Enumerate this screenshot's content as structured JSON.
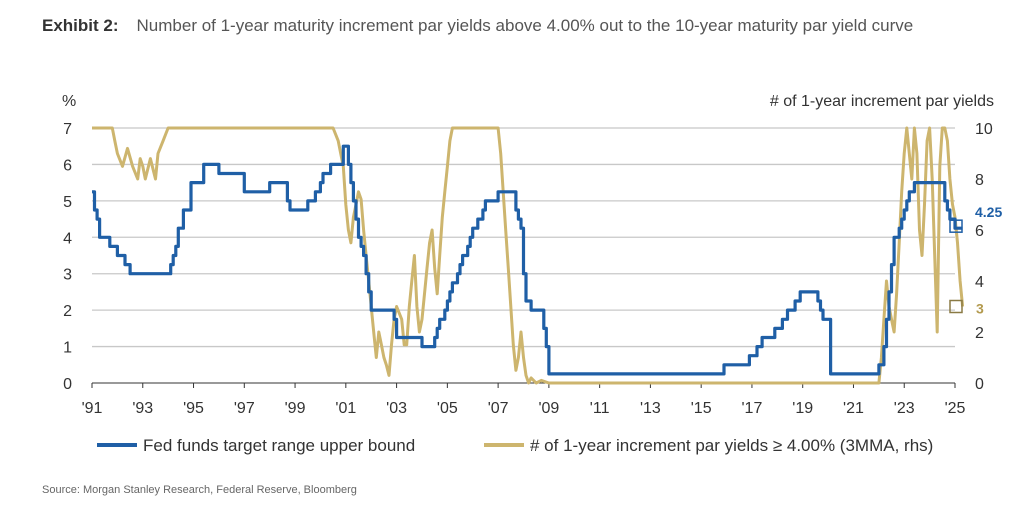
{
  "header": {
    "exhibit_label": "Exhibit 2:",
    "title_text": "Number of 1-year maturity increment par yields above 4.00% out to the 10-year maturity par yield curve"
  },
  "source": "Source: Morgan Stanley Research, Federal Reserve, Bloomberg",
  "chart_data": {
    "type": "line",
    "left_axis_label": "%",
    "right_axis_label": "# of 1-year increment par yields",
    "left_ylim": [
      0,
      7
    ],
    "right_ylim": [
      0,
      10
    ],
    "left_ticks": [
      "0",
      "1",
      "2",
      "3",
      "4",
      "5",
      "6",
      "7"
    ],
    "right_ticks": [
      "0",
      "2",
      "4",
      "6",
      "8",
      "10"
    ],
    "xlim": [
      1991,
      2025
    ],
    "x_ticks": [
      "'91",
      "'93",
      "'95",
      "'97",
      "'99",
      "'01",
      "'03",
      "'05",
      "'07",
      "'09",
      "'11",
      "'13",
      "'15",
      "'17",
      "'19",
      "'21",
      "'23",
      "'25"
    ],
    "colors": {
      "fed": "#1f5fa6",
      "count": "#cdb56e",
      "grid": "#c8c8c8"
    },
    "series": [
      {
        "name": "Fed funds target range upper bound",
        "axis": "left",
        "color": "#1f5fa6",
        "end_label": "4.25",
        "x": [
          1991.0,
          1991.1,
          1991.2,
          1991.3,
          1991.6,
          1991.7,
          1991.8,
          1992.0,
          1992.3,
          1992.5,
          1993.0,
          1993.5,
          1994.0,
          1994.1,
          1994.2,
          1994.3,
          1994.4,
          1994.6,
          1994.7,
          1994.9,
          1995.4,
          1995.5,
          1996.0,
          1997.0,
          1997.2,
          1998.0,
          1998.6,
          1998.7,
          1998.8,
          1998.9,
          1999.3,
          1999.5,
          1999.6,
          1999.8,
          2000.0,
          2000.1,
          2000.4,
          2000.9,
          2001.0,
          2001.1,
          2001.2,
          2001.3,
          2001.4,
          2001.5,
          2001.6,
          2001.7,
          2001.8,
          2001.9,
          2002.0,
          2002.9,
          2003.0,
          2003.5,
          2004.0,
          2004.4,
          2004.5,
          2004.6,
          2004.7,
          2004.9,
          2005.0,
          2005.1,
          2005.2,
          2005.4,
          2005.5,
          2005.6,
          2005.8,
          2005.9,
          2006.0,
          2006.2,
          2006.4,
          2006.5,
          2007.0,
          2007.6,
          2007.7,
          2007.8,
          2007.9,
          2008.0,
          2008.1,
          2008.3,
          2008.8,
          2008.9,
          2009.0,
          2015.0,
          2015.9,
          2016.0,
          2016.9,
          2017.0,
          2017.2,
          2017.4,
          2017.5,
          2017.9,
          2018.0,
          2018.2,
          2018.4,
          2018.7,
          2018.9,
          2019.0,
          2019.5,
          2019.6,
          2019.7,
          2019.8,
          2020.1,
          2020.2,
          2021.0,
          2022.0,
          2022.2,
          2022.3,
          2022.4,
          2022.5,
          2022.6,
          2022.7,
          2022.8,
          2022.9,
          2023.0,
          2023.1,
          2023.2,
          2023.3,
          2023.4,
          2023.5,
          2023.6,
          2024.0,
          2024.6,
          2024.7,
          2024.8,
          2024.9,
          2025.0,
          2025.3
        ],
        "values": [
          5.25,
          4.75,
          4.5,
          4.0,
          4.0,
          3.75,
          3.75,
          3.5,
          3.25,
          3.0,
          3.0,
          3.0,
          3.0,
          3.25,
          3.5,
          3.75,
          4.25,
          4.75,
          4.75,
          5.5,
          6.0,
          6.0,
          5.75,
          5.25,
          5.25,
          5.5,
          5.5,
          5.0,
          4.75,
          4.75,
          4.75,
          5.0,
          5.0,
          5.25,
          5.5,
          5.75,
          6.0,
          6.5,
          6.5,
          6.0,
          5.5,
          5.0,
          4.5,
          4.0,
          3.75,
          3.5,
          3.0,
          2.5,
          2.0,
          1.75,
          1.25,
          1.25,
          1.0,
          1.0,
          1.25,
          1.5,
          1.75,
          2.0,
          2.25,
          2.5,
          2.75,
          3.0,
          3.25,
          3.5,
          3.75,
          4.0,
          4.25,
          4.5,
          4.75,
          5.0,
          5.25,
          5.25,
          4.75,
          4.5,
          4.25,
          3.0,
          2.25,
          2.0,
          1.5,
          1.0,
          0.25,
          0.25,
          0.5,
          0.5,
          0.75,
          0.75,
          1.0,
          1.25,
          1.25,
          1.5,
          1.5,
          1.75,
          2.0,
          2.25,
          2.5,
          2.5,
          2.5,
          2.25,
          2.0,
          1.75,
          0.25,
          0.25,
          0.25,
          0.5,
          1.0,
          1.75,
          2.5,
          3.25,
          4.0,
          4.0,
          4.25,
          4.5,
          4.75,
          5.0,
          5.25,
          5.25,
          5.5,
          5.5,
          5.5,
          5.5,
          5.0,
          4.75,
          4.5,
          4.5,
          4.25,
          4.25
        ]
      },
      {
        "name": "# of 1-year increment par yields ≥ 4.00% (3MMA, rhs)",
        "axis": "right",
        "color": "#cdb56e",
        "end_label": "3",
        "x": [
          1991.0,
          1991.8,
          1991.9,
          1992.0,
          1992.2,
          1992.4,
          1992.6,
          1992.8,
          1992.9,
          1993.0,
          1993.1,
          1993.3,
          1993.5,
          1993.6,
          1993.8,
          1994.0,
          1994.2,
          1994.4,
          2000.3,
          2000.5,
          2000.7,
          2000.8,
          2000.9,
          2001.0,
          2001.1,
          2001.2,
          2001.3,
          2001.4,
          2001.5,
          2001.6,
          2001.7,
          2001.8,
          2001.9,
          2002.0,
          2002.1,
          2002.2,
          2002.3,
          2002.4,
          2002.5,
          2002.6,
          2002.7,
          2002.8,
          2002.9,
          2003.0,
          2003.2,
          2003.3,
          2003.4,
          2003.5,
          2003.6,
          2003.7,
          2003.8,
          2003.9,
          2004.0,
          2004.1,
          2004.2,
          2004.3,
          2004.4,
          2004.5,
          2004.6,
          2004.7,
          2004.8,
          2004.9,
          2005.0,
          2005.1,
          2005.2,
          2005.3,
          2006.9,
          2007.0,
          2007.1,
          2007.2,
          2007.3,
          2007.4,
          2007.5,
          2007.6,
          2007.7,
          2007.8,
          2007.9,
          2008.0,
          2008.1,
          2008.2,
          2008.3,
          2008.5,
          2008.7,
          2009.0,
          2022.0,
          2022.1,
          2022.2,
          2022.3,
          2022.4,
          2022.5,
          2022.6,
          2022.7,
          2022.8,
          2022.9,
          2023.0,
          2023.1,
          2023.2,
          2023.3,
          2023.4,
          2023.5,
          2023.6,
          2023.7,
          2023.8,
          2023.9,
          2024.0,
          2024.1,
          2024.2,
          2024.3,
          2024.4,
          2024.5,
          2024.6,
          2024.7,
          2024.8,
          2024.9,
          2025.0,
          2025.1,
          2025.2,
          2025.3
        ],
        "values": [
          10,
          10,
          9.5,
          9.0,
          8.5,
          9.2,
          8.5,
          8.0,
          8.8,
          8.5,
          8.0,
          8.8,
          8.0,
          9.0,
          9.5,
          10,
          10,
          10,
          10,
          10,
          9.5,
          9.0,
          8.5,
          7.0,
          6.0,
          5.5,
          6.5,
          7.0,
          7.5,
          7.2,
          6.0,
          5.0,
          4.0,
          3.0,
          2.0,
          1.0,
          2.0,
          1.5,
          1.0,
          0.7,
          0.3,
          1.5,
          2.5,
          3.0,
          2.5,
          1.5,
          1.5,
          3.0,
          4.0,
          5.0,
          3.0,
          2.0,
          2.5,
          3.5,
          4.5,
          5.5,
          6.0,
          4.5,
          3.5,
          5.0,
          6.5,
          7.5,
          8.5,
          9.5,
          10,
          10,
          10,
          10,
          9.0,
          7.5,
          6.0,
          4.5,
          3.0,
          1.5,
          0.5,
          1.0,
          2.0,
          1.0,
          0.3,
          0.0,
          0.2,
          0.0,
          0.1,
          0.0,
          0.0,
          1.0,
          2.5,
          4.0,
          3.0,
          2.5,
          2.0,
          3.5,
          5.5,
          7.5,
          9.0,
          10,
          9.0,
          8.0,
          10,
          9.0,
          6.0,
          5.0,
          7.0,
          9.5,
          10,
          8.0,
          5.0,
          2.0,
          8.5,
          10,
          10,
          9.5,
          8.0,
          7.0,
          6.5,
          5.5,
          4.0,
          3.0
        ]
      }
    ]
  }
}
